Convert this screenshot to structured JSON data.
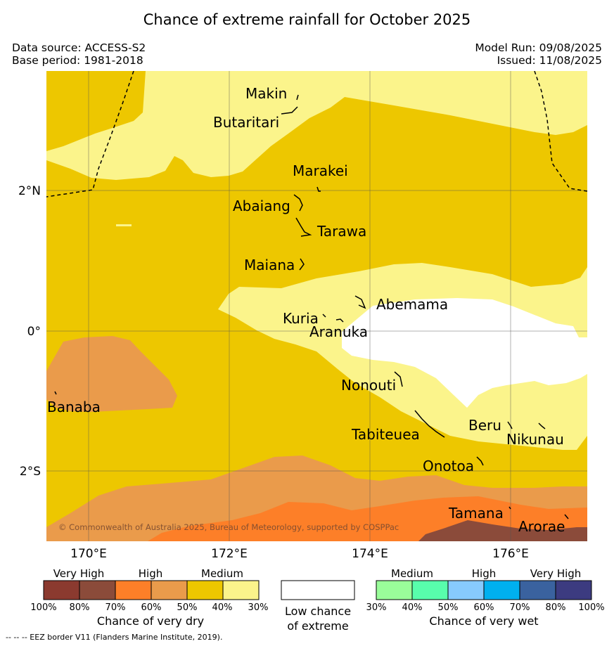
{
  "title": "Chance of extreme rainfall for October 2025",
  "meta": {
    "data_source": "Data source: ACCESS-S2",
    "base_period": "Base period: 1981-2018",
    "model_run": "Model Run: 09/08/2025",
    "issued": "Issued: 11/08/2025"
  },
  "map": {
    "lon_labels": [
      "170°E",
      "172°E",
      "174°E",
      "176°E"
    ],
    "lat_labels": [
      "2°N",
      "0°",
      "2°S"
    ],
    "places": [
      "Makin",
      "Butaritari",
      "Marakei",
      "Abaiang",
      "Tarawa",
      "Maiana",
      "Abemama",
      "Kuria",
      "Aranuka",
      "Nonouti",
      "Banaba",
      "Tabiteuea",
      "Beru",
      "Nikunau",
      "Onotoa",
      "Tamana",
      "Arorae"
    ],
    "copyright": "© Commonwealth of Australia 2025, Bureau of Meteorology, supported by COSPPac",
    "colors": {
      "dry_80_100": "#8b3a2f",
      "dry_70_80": "#8b4b3a",
      "dry_60_70": "#fd7f28",
      "dry_50_60": "#ea9b4b",
      "dry_40_50": "#edc700",
      "dry_30_40": "#fbf48b",
      "low": "#ffffff"
    }
  },
  "legend": {
    "dry": {
      "headers": [
        "Very High",
        "High",
        "Medium"
      ],
      "ticks": [
        "100%",
        "80%",
        "70%",
        "60%",
        "50%",
        "40%",
        "30%"
      ],
      "caption": "Chance of very dry",
      "colors": [
        "#8b3a2f",
        "#8b4b3a",
        "#fd7f28",
        "#ea9b4b",
        "#edc700",
        "#fbf48b"
      ]
    },
    "low": {
      "caption_line1": "Low chance",
      "caption_line2": "of extreme",
      "color": "#ffffff"
    },
    "wet": {
      "headers": [
        "Medium",
        "High",
        "Very High"
      ],
      "ticks": [
        "30%",
        "40%",
        "50%",
        "60%",
        "70%",
        "80%",
        "100%"
      ],
      "caption": "Chance of very wet",
      "colors": [
        "#9afd9a",
        "#58fdac",
        "#87cafd",
        "#00b0ef",
        "#3a629f",
        "#3c3b80"
      ]
    }
  },
  "footnote": "--  --  -- EEZ border V11 (Flanders Marine Institute, 2019)."
}
